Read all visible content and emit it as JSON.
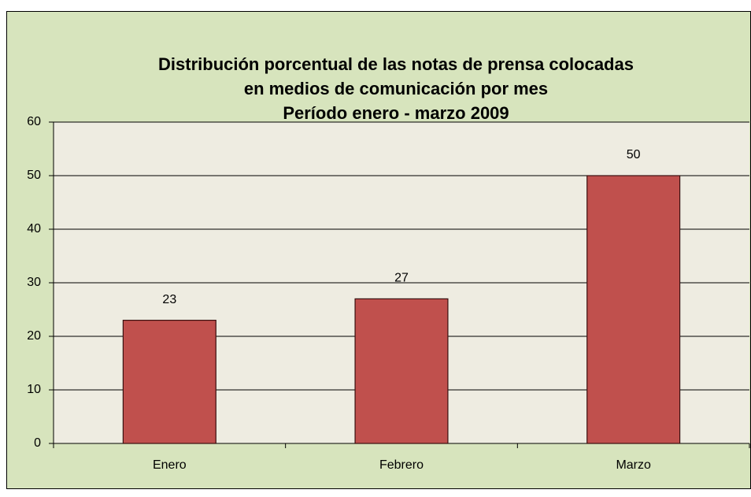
{
  "chart_data": {
    "type": "bar",
    "title": [
      "Distribución porcentual de las notas de prensa colocadas",
      "en medios  de comunicación por mes",
      "Período enero - marzo 2009"
    ],
    "categories": [
      "Enero",
      "Febrero",
      "Marzo"
    ],
    "values": [
      23,
      27,
      50
    ],
    "color": "#c0504d",
    "ylim": [
      0,
      60
    ],
    "yticks": [
      0,
      10,
      20,
      30,
      40,
      50,
      60
    ],
    "grid": true
  }
}
